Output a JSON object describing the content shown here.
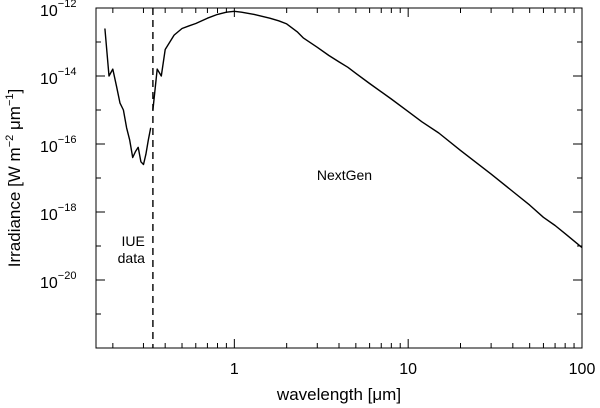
{
  "chart_data": {
    "type": "line",
    "title": "",
    "xlabel": "wavelength [μm]",
    "ylabel": "Irradiance [W m⁻² μm⁻¹]",
    "xlabel_parts": {
      "text": "wavelength ",
      "unit": "[μm]"
    },
    "ylabel_parts": {
      "main": "Irradiance [W m",
      "exp1": "−2",
      "mid": " μm",
      "exp2": "−1",
      "end": "]"
    },
    "x_scale": "log",
    "y_scale": "log",
    "xlim": [
      0.16,
      100
    ],
    "ylim": [
      1e-22,
      1e-12
    ],
    "x_ticks": [
      {
        "value": 1,
        "label": "1"
      },
      {
        "value": 10,
        "label": "10"
      },
      {
        "value": 100,
        "label": "100"
      }
    ],
    "y_ticks": [
      {
        "value": 1e-12,
        "base": "10",
        "exp": "−12"
      },
      {
        "value": 1e-14,
        "base": "10",
        "exp": "−14"
      },
      {
        "value": 1e-16,
        "base": "10",
        "exp": "−16"
      },
      {
        "value": 1e-18,
        "base": "10",
        "exp": "−18"
      },
      {
        "value": 1e-20,
        "base": "10",
        "exp": "−20"
      }
    ],
    "grid": false,
    "legend": "none",
    "series": [
      {
        "name": "IUE data",
        "x": [
          0.18,
          0.19,
          0.2,
          0.21,
          0.22,
          0.23,
          0.24,
          0.25,
          0.26,
          0.27,
          0.28,
          0.29,
          0.3,
          0.31,
          0.32,
          0.33
        ],
        "y": [
          2.5e-13,
          1e-14,
          1.6e-14,
          5e-15,
          1.6e-15,
          1e-15,
          3e-16,
          1.3e-16,
          4e-17,
          6e-17,
          8e-17,
          3e-17,
          2.5e-17,
          5e-17,
          1.3e-16,
          3e-16
        ]
      },
      {
        "name": "NextGen",
        "x": [
          0.34,
          0.36,
          0.38,
          0.4,
          0.45,
          0.5,
          0.55,
          0.6,
          0.7,
          0.8,
          0.9,
          1.0,
          1.1,
          1.3,
          1.6,
          1.8,
          2.0,
          2.3,
          2.5,
          3.0,
          3.5,
          4.0,
          4.5,
          5.0,
          6.0,
          8.0,
          10.0,
          12.0,
          15.0,
          20.0,
          30.0,
          40.0,
          50.0,
          60.0,
          70.0,
          80.0,
          100.0
        ],
        "y": [
          1e-15,
          1.6e-14,
          1e-14,
          6e-14,
          1.6e-13,
          2.5e-13,
          3e-13,
          3.5e-13,
          5e-13,
          6.5e-13,
          7.5e-13,
          8e-13,
          7.5e-13,
          6.5e-13,
          5e-13,
          4.2e-13,
          3.4e-13,
          2e-13,
          1.3e-13,
          7e-14,
          4e-14,
          2.6e-14,
          1.8e-14,
          1.2e-14,
          6e-15,
          2.1e-15,
          9e-16,
          4.5e-16,
          2.1e-16,
          6.5e-17,
          1.3e-17,
          4e-18,
          1.6e-18,
          7e-19,
          4e-19,
          2.3e-19,
          9e-20
        ]
      }
    ],
    "annotations": [
      {
        "kind": "vline",
        "x": 0.34,
        "style": "dashed"
      },
      {
        "kind": "text",
        "lines": [
          "IUE",
          "data"
        ]
      },
      {
        "kind": "text",
        "lines": [
          "NextGen"
        ]
      }
    ]
  }
}
